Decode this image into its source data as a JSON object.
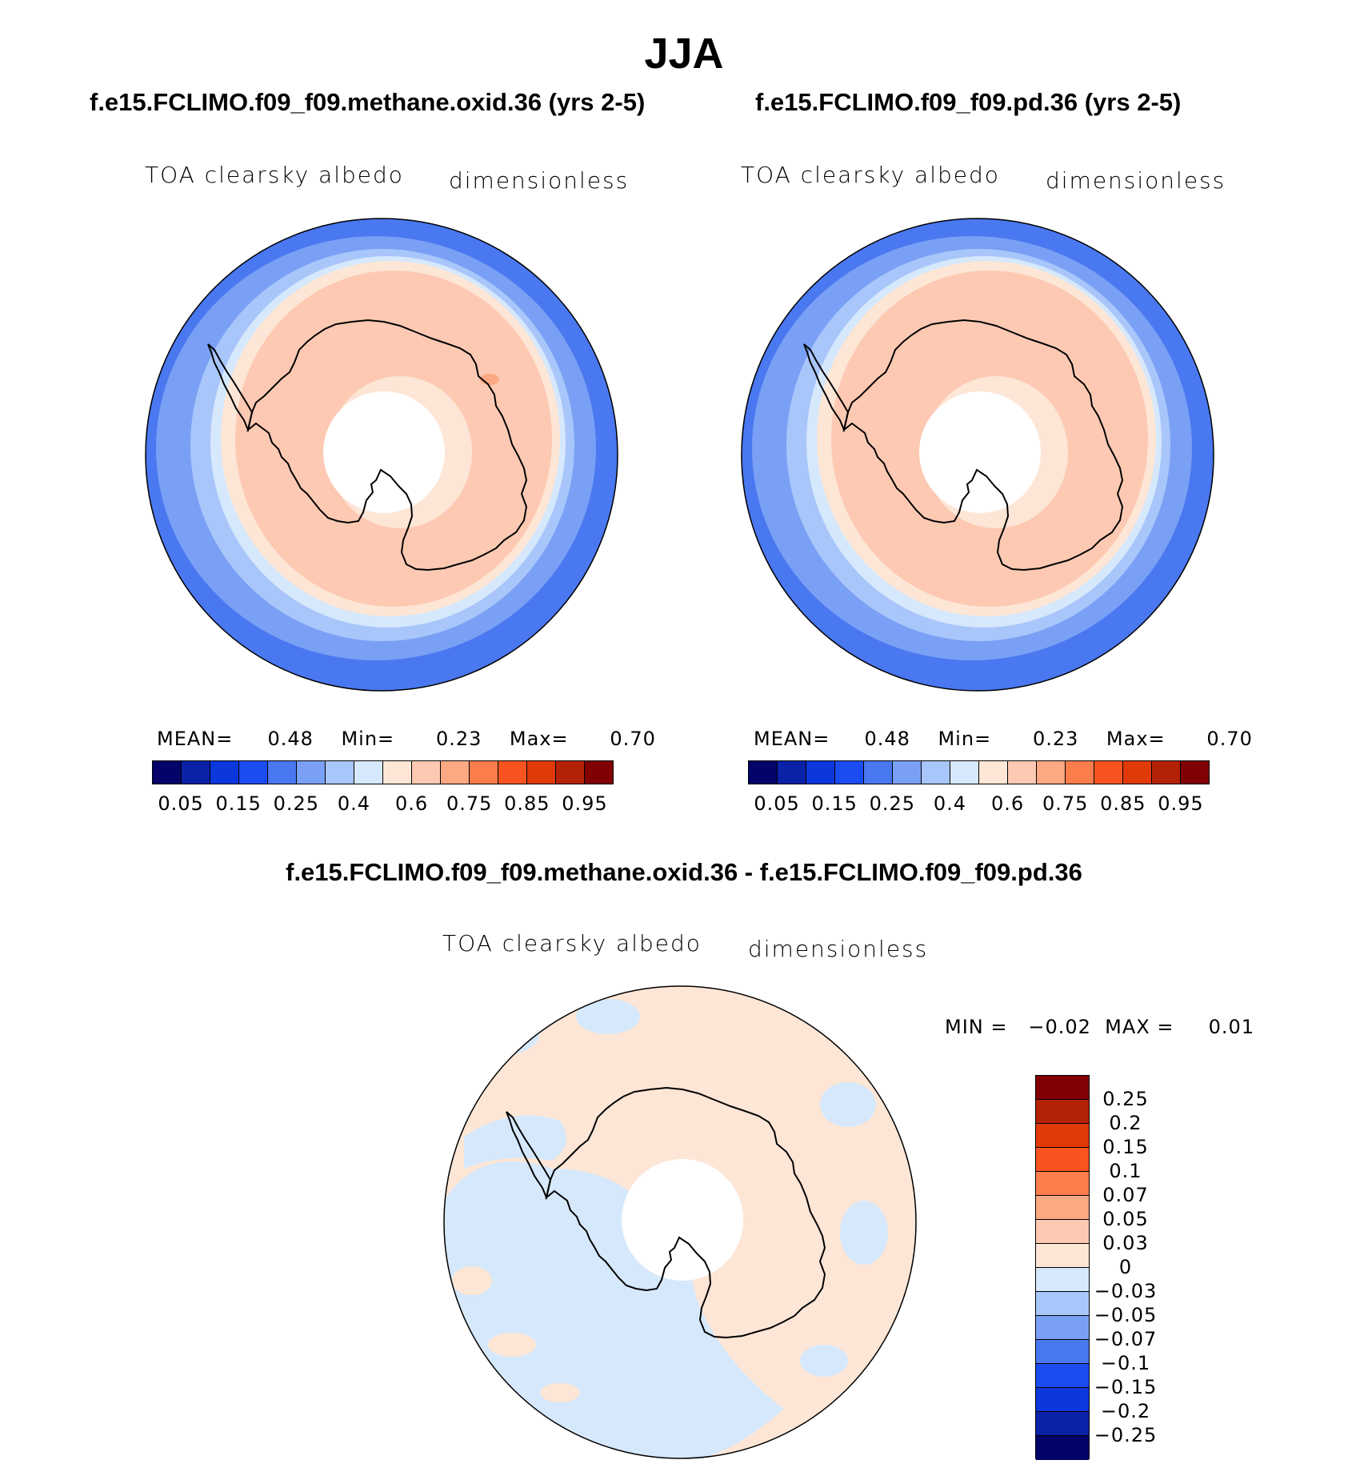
{
  "season": "JJA",
  "panels": [
    {
      "case_title": "f.e15.FCLIMO.f09_f09.methane.oxid.36 (yrs 2-5)",
      "variable": "TOA clearsky albedo",
      "units": "dimensionless",
      "stats": {
        "mean_label": "MEAN=",
        "mean": "0.48",
        "min_label": "Min=",
        "min": "0.23",
        "max_label": "Max=",
        "max": "0.70"
      }
    },
    {
      "case_title": "f.e15.FCLIMO.f09_f09.pd.36 (yrs 2-5)",
      "variable": "TOA clearsky albedo",
      "units": "dimensionless",
      "stats": {
        "mean_label": "MEAN=",
        "mean": "0.48",
        "min_label": "Min=",
        "min": "0.23",
        "max_label": "Max=",
        "max": "0.70"
      }
    }
  ],
  "diff_panel": {
    "title": "f.e15.FCLIMO.f09_f09.methane.oxid.36 - f.e15.FCLIMO.f09_f09.pd.36",
    "variable": "TOA clearsky albedo",
    "units": "dimensionless",
    "minmax_text": "MIN =   −0.02  MAX =     0.01"
  },
  "colorbar_abs": {
    "colors": [
      "#030369",
      "#0a22a8",
      "#0c37dd",
      "#1b4cf2",
      "#4a78f0",
      "#7aa0f5",
      "#a9c6fb",
      "#d6e8fb",
      "#fde6d6",
      "#fdc9b2",
      "#fba883",
      "#fb7d4b",
      "#f9541f",
      "#e03a08",
      "#b42206",
      "#800003"
    ],
    "tick_labels": [
      "0.05",
      "0.15",
      "0.25",
      "0.4",
      "0.6",
      "0.75",
      "0.85",
      "0.95"
    ]
  },
  "colorbar_diff": {
    "colors_top_to_bottom": [
      "#800003",
      "#b42206",
      "#e03a08",
      "#f9541f",
      "#fb7d4b",
      "#fba883",
      "#fdc9b2",
      "#fde6d6",
      "#d6e8fb",
      "#a9c6fb",
      "#7aa0f5",
      "#4a78f0",
      "#1b4cf2",
      "#0c37dd",
      "#0a22a8",
      "#030369"
    ],
    "tick_labels": [
      "0.25",
      "0.2",
      "0.15",
      "0.1",
      "0.07",
      "0.05",
      "0.03",
      "0",
      "−0.03",
      "−0.05",
      "−0.07",
      "−0.1",
      "−0.15",
      "−0.2",
      "−0.25"
    ]
  }
}
